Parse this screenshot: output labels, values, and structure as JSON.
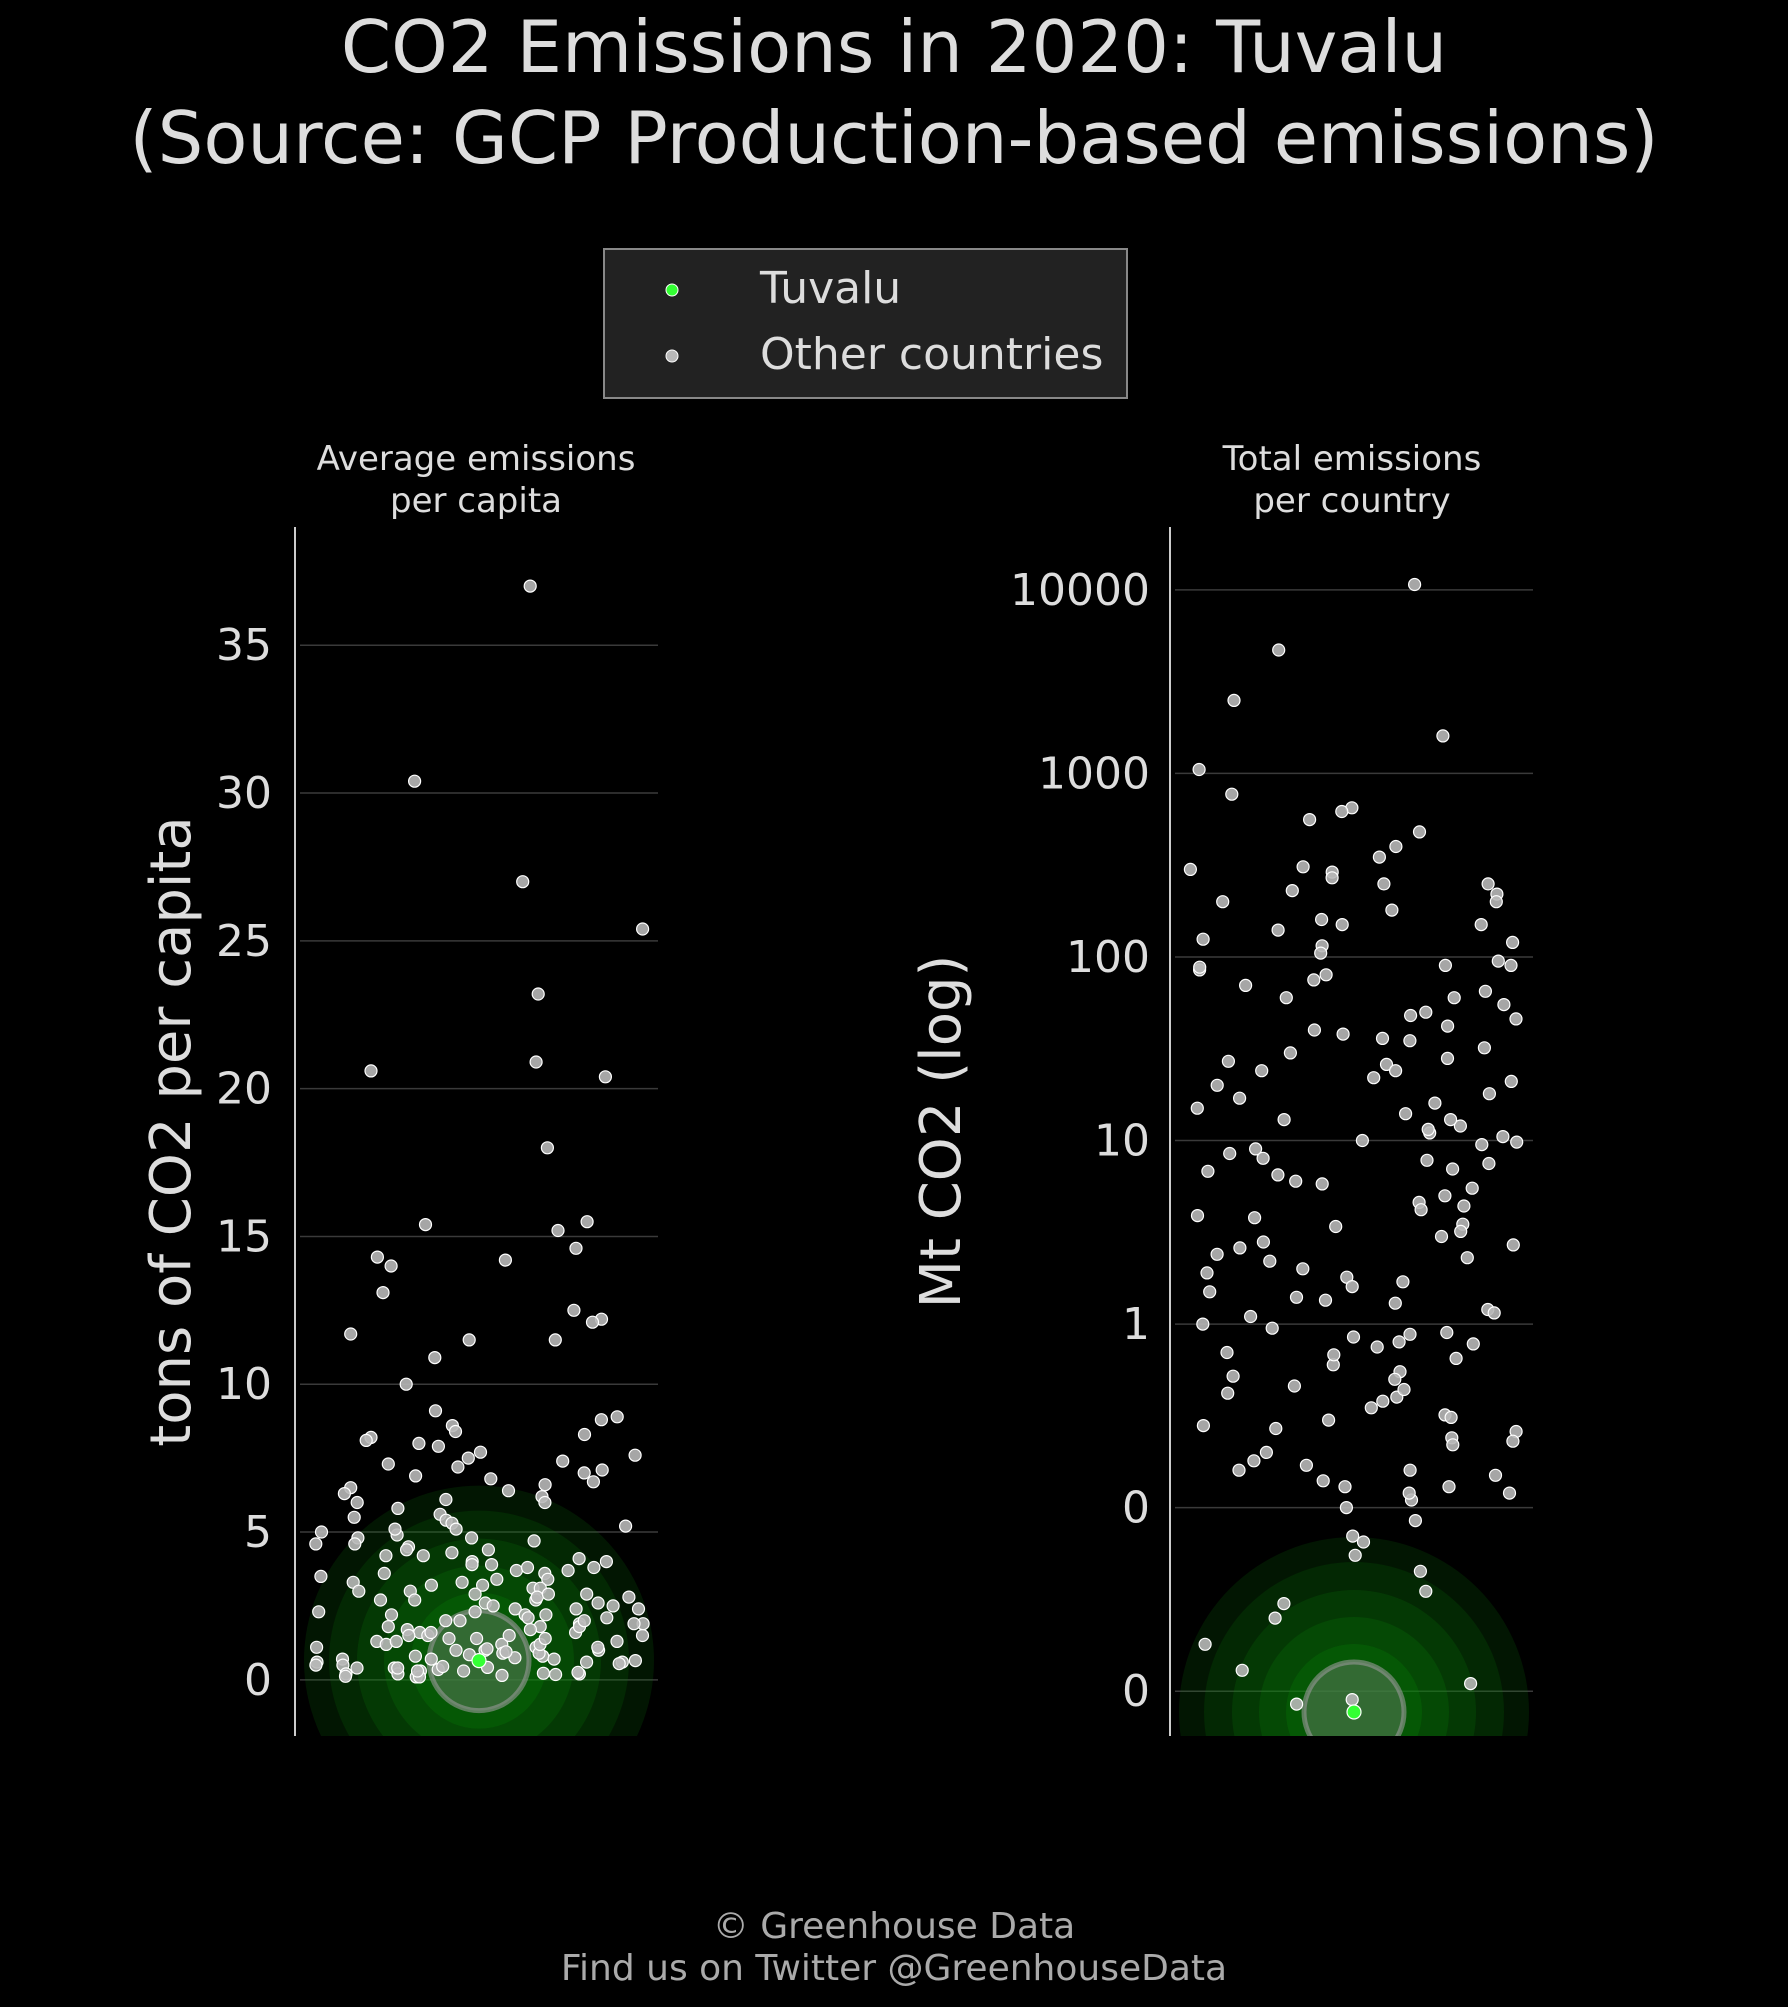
{
  "title": {
    "line1": "CO2 Emissions in 2020: Tuvalu",
    "line2": "(Source: GCP Production-based emissions)"
  },
  "legend": {
    "highlight_label": "Tuvalu",
    "others_label": "Other countries",
    "placement": "top-center"
  },
  "footer": {
    "line1": "© Greenhouse Data",
    "line2": "Find us on Twitter @GreenhouseData"
  },
  "colors": {
    "background": "#000000",
    "text": "#dddddd",
    "highlight": "#33ff33",
    "others": "#b8b8b8",
    "grid": "#3a3a3a",
    "legend_bg": "#222222"
  },
  "chart_data": [
    {
      "type": "scatter",
      "title_line1": "Average emissions",
      "title_line2": "per capita",
      "ylabel": "tons of CO2 per capita",
      "yticks": [
        0,
        5,
        10,
        15,
        20,
        25,
        30,
        35
      ],
      "ytick_labels": [
        "0",
        "5",
        "10",
        "15",
        "20",
        "25",
        "30",
        "35"
      ],
      "ylim": [
        -1.9,
        39
      ],
      "grid": true,
      "highlight": {
        "name": "Tuvalu",
        "value": 0.65
      },
      "others": [
        37.0,
        30.4,
        27.0,
        25.4,
        23.2,
        20.9,
        20.6,
        20.4,
        18.0,
        15.5,
        15.2,
        15.4,
        14.6,
        14.3,
        14.2,
        14.0,
        13.1,
        12.5,
        12.2,
        12.1,
        11.7,
        11.5,
        11.5,
        10.9,
        10.0,
        9.1,
        8.9,
        8.8,
        8.6,
        8.4,
        8.3,
        8.2,
        8.1,
        8.0,
        7.9,
        7.7,
        7.6,
        7.5,
        7.4,
        7.3,
        7.2,
        7.1,
        7.0,
        6.9,
        6.8,
        6.7,
        6.6,
        6.5,
        6.4,
        6.3,
        6.2,
        6.1,
        6.0,
        5.8,
        5.6,
        5.4,
        5.3,
        5.2,
        5.1,
        5.0,
        4.9,
        4.8,
        4.7,
        4.6,
        4.5,
        4.4,
        4.3,
        4.2,
        4.1,
        4.0,
        3.9,
        3.8,
        3.7,
        3.6,
        3.5,
        3.4,
        3.3,
        3.2,
        3.1,
        3.0,
        2.9,
        2.8,
        2.7,
        2.6,
        2.5,
        2.4,
        2.3,
        2.2,
        2.1,
        2.0,
        1.9,
        1.8,
        1.7,
        1.6,
        1.5,
        1.4,
        1.3,
        1.2,
        1.1,
        1.0,
        0.9,
        0.8,
        0.7,
        0.6,
        0.5,
        0.4,
        0.3,
        0.2,
        0.1,
        2.6,
        2.2,
        1.8,
        1.4,
        1.0,
        0.6,
        0.3,
        3.4,
        2.9,
        2.4,
        1.9,
        1.5,
        1.1,
        0.8,
        0.5,
        0.2,
        4.4,
        3.8,
        3.1,
        2.7,
        2.3,
        1.7,
        1.3,
        0.9,
        0.4,
        0.15,
        3.6,
        2.8,
        2.0,
        1.6,
        1.2,
        0.7,
        0.35,
        5.1,
        4.2,
        3.3,
        2.5,
        1.9,
        1.4,
        1.0,
        0.6,
        0.25,
        0.1,
        4.8,
        3.9,
        3.0,
        2.1,
        1.5,
        1.1,
        0.75,
        0.45,
        0.2,
        6.0,
        5.5,
        4.6,
        3.7,
        2.9,
        2.2,
        1.6,
        1.2,
        0.85,
        0.55,
        0.3,
        0.12,
        4.0,
        3.2,
        2.4,
        1.8,
        1.3,
        0.95,
        0.65,
        0.4,
        0.18,
        2.7,
        2.0,
        1.5,
        1.05,
        0.7,
        0.42,
        0.22
      ]
    },
    {
      "type": "scatter",
      "title_line1": "Total emissions",
      "title_line2": "per country",
      "ylabel": "Mt CO2 (log)",
      "log_scale": true,
      "yticks": [
        0.01,
        0.1,
        1,
        10,
        100,
        1000,
        10000
      ],
      "ytick_labels": [
        "0",
        "0",
        "1",
        "10",
        "100",
        "1000",
        "10000"
      ],
      "ylim": [
        0.0057,
        22000
      ],
      "grid": true,
      "highlight": {
        "name": "Tuvalu",
        "value": 0.0077
      },
      "others": [
        10700,
        4700,
        2500,
        1600,
        1050,
        770,
        650,
        620,
        560,
        480,
        400,
        350,
        310,
        290,
        270,
        250,
        230,
        220,
        200,
        180,
        160,
        150,
        140,
        125,
        115,
        105,
        95,
        90,
        85,
        80,
        75,
        70,
        65,
        60,
        55,
        50,
        46,
        42,
        38,
        35,
        32,
        30,
        28,
        26,
        24,
        22,
        20,
        18,
        16,
        15,
        14,
        13,
        12,
        11,
        10.5,
        10,
        9.5,
        9,
        8.5,
        8,
        7.5,
        7,
        6.5,
        6,
        5.5,
        5,
        4.6,
        4.2,
        3.8,
        3.5,
        3.2,
        3.0,
        2.8,
        2.6,
        2.4,
        2.2,
        2.0,
        1.8,
        1.6,
        1.5,
        1.4,
        1.3,
        1.2,
        1.1,
        1.0,
        0.95,
        0.9,
        0.85,
        0.8,
        0.75,
        0.7,
        0.65,
        0.6,
        0.55,
        0.5,
        0.46,
        0.42,
        0.38,
        0.35,
        0.32,
        0.3,
        0.28,
        0.26,
        0.24,
        0.22,
        0.2,
        0.18,
        0.16,
        0.15,
        0.14,
        0.13,
        0.12,
        0.11,
        0.1,
        0.085,
        0.065,
        0.055,
        0.045,
        0.035,
        0.03,
        0.025,
        0.018,
        0.013,
        0.011,
        0.009,
        0.0085,
        300,
        200,
        120,
        60,
        36,
        21,
        13,
        7.8,
        4.4,
        2.7,
        1.7,
        0.88,
        0.52,
        0.31,
        0.17,
        0.12,
        0.07,
        250,
        150,
        88,
        48,
        27,
        17,
        9.8,
        5.8,
        3.4,
        1.9,
        1.15,
        0.68,
        0.4,
        0.23,
        0.13,
        90,
        40,
        24,
        11.5,
        6.8,
        3.9,
        2.3,
        1.35,
        0.78,
        0.44,
        0.27,
        0.16
      ]
    }
  ]
}
